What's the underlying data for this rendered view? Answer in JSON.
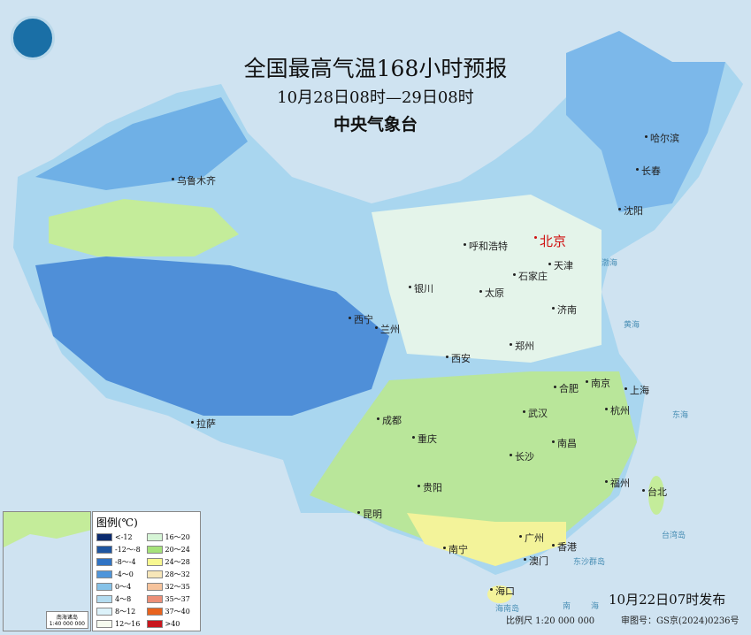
{
  "title": "全国最高气温168小时预报",
  "subtitle": "10月28日08时—29日08时",
  "agency": "中央气象台",
  "issue_time": "10月22日07时发布",
  "scale": "比例尺 1:20 000 000",
  "review_number": "审图号：GS京(2024)0236号",
  "inset": {
    "label": "南海诸岛",
    "scale": "1:40 000 000"
  },
  "legend": {
    "title": "图例(℃)",
    "items": [
      {
        "label": "<-12",
        "color": "#0b2a6e"
      },
      {
        "label": "16～20",
        "color": "#d6f5d6"
      },
      {
        "label": "-12～-8",
        "color": "#1f56a0"
      },
      {
        "label": "20～24",
        "color": "#a6e27a"
      },
      {
        "label": "-8～-4",
        "color": "#2f73c4"
      },
      {
        "label": "24～28",
        "color": "#f8f890"
      },
      {
        "label": "-4～0",
        "color": "#4f95da"
      },
      {
        "label": "28～32",
        "color": "#f7e6b8"
      },
      {
        "label": "0～4",
        "color": "#86c2e8"
      },
      {
        "label": "32～35",
        "color": "#f6c39c"
      },
      {
        "label": "4～8",
        "color": "#b4dcf0"
      },
      {
        "label": "35～37",
        "color": "#ec8f78"
      },
      {
        "label": "8～12",
        "color": "#dcf2fa"
      },
      {
        "label": "37～40",
        "color": "#e8631e"
      },
      {
        "label": "12～16",
        "color": "#f6fbef"
      },
      {
        "label": ">40",
        "color": "#c8161d"
      }
    ]
  },
  "capital": {
    "name": "北京"
  },
  "cities": [
    "乌鲁木齐",
    "哈尔滨",
    "长春",
    "沈阳",
    "呼和浩特",
    "天津",
    "石家庄",
    "太原",
    "济南",
    "银川",
    "西宁",
    "兰州",
    "郑州",
    "西安",
    "南京",
    "合肥",
    "上海",
    "杭州",
    "武汉",
    "成都",
    "重庆",
    "长沙",
    "南昌",
    "拉萨",
    "福州",
    "台北",
    "贵阳",
    "昆明",
    "南宁",
    "广州",
    "香港",
    "澳门",
    "海口"
  ],
  "seas": [
    "渤海",
    "黄海",
    "东海",
    "台湾岛",
    "东沙群岛",
    "海南岛",
    "南",
    "海"
  ]
}
